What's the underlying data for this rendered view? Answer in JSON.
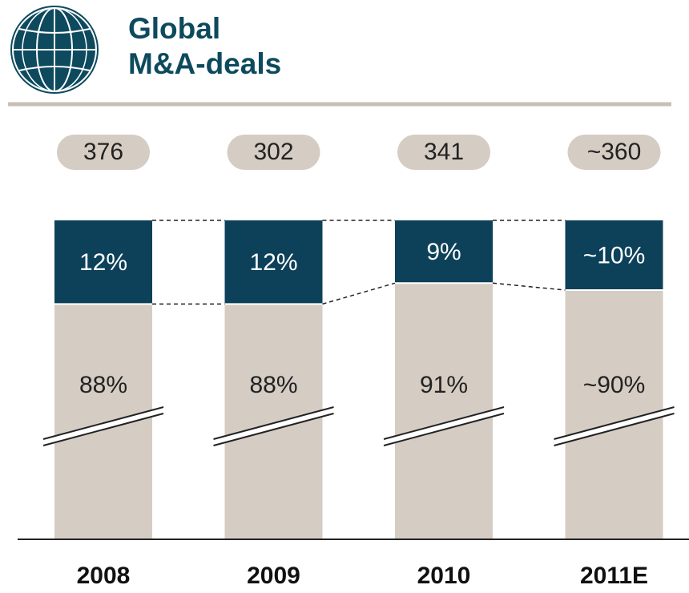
{
  "chart_data": {
    "type": "stacked-bar",
    "title": "Global M&A-deals",
    "categories": [
      "2008",
      "2009",
      "2010",
      "2011E"
    ],
    "totals": {
      "values": [
        376,
        302,
        341,
        360
      ],
      "value_labels": [
        "376",
        "302",
        "341",
        "~360"
      ]
    },
    "series": [
      {
        "color": "#d5ccc3",
        "values": [
          88,
          88,
          91,
          90
        ],
        "value_labels": [
          "88%",
          "88%",
          "91%",
          "~90%"
        ]
      },
      {
        "color": "#0d4159",
        "values": [
          12,
          12,
          9,
          10
        ],
        "value_labels": [
          "12%",
          "12%",
          "9%",
          "~10%"
        ]
      }
    ]
  }
}
